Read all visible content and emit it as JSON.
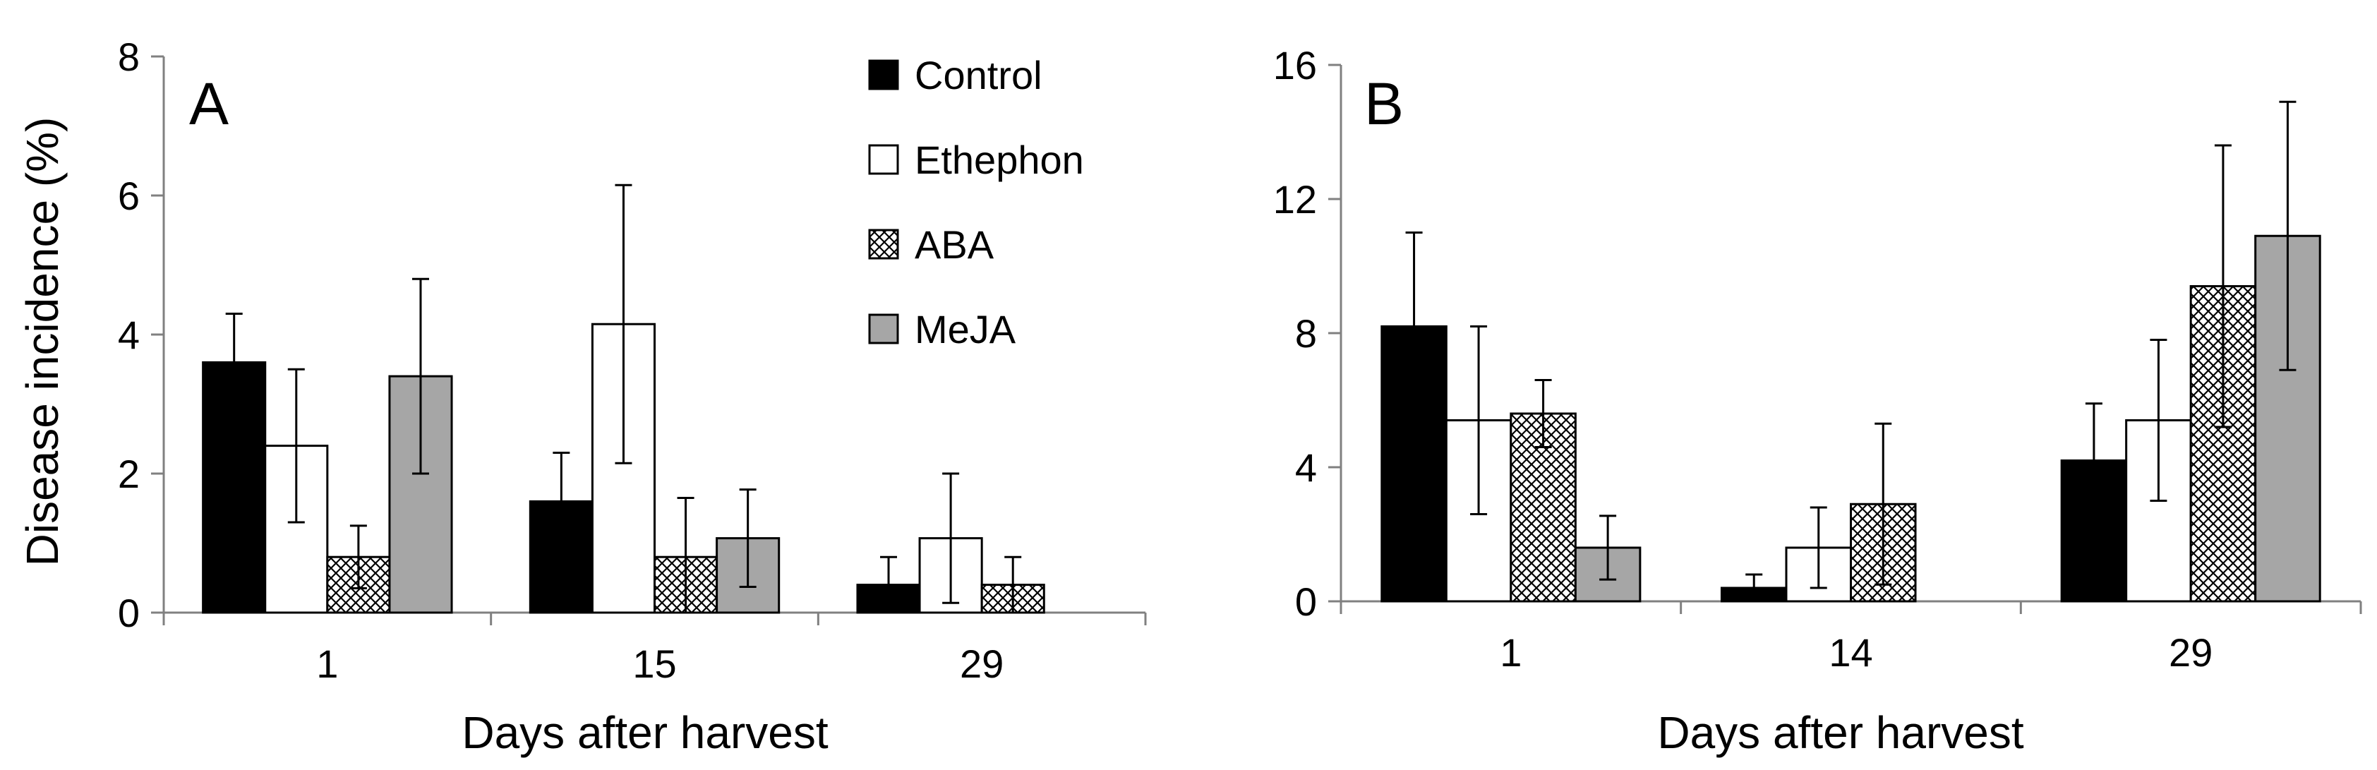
{
  "chart_data": [
    {
      "panel": "A",
      "type": "bar",
      "title": "",
      "xlabel": "Days after harvest",
      "ylabel": "Disease incidence (%)",
      "ylim": [
        0,
        8
      ],
      "yticks": [
        0,
        2,
        4,
        6,
        8
      ],
      "categories": [
        "1",
        "15",
        "29"
      ],
      "series": [
        {
          "name": "Control",
          "values": [
            3.6,
            1.6,
            0.4
          ],
          "errors": [
            0.7,
            0.7,
            0.4
          ]
        },
        {
          "name": "Ethephon",
          "values": [
            2.4,
            4.15,
            1.07
          ],
          "errors": [
            1.1,
            2.0,
            0.93
          ]
        },
        {
          "name": "ABA",
          "values": [
            0.8,
            0.8,
            0.4
          ],
          "errors": [
            0.45,
            0.85,
            0.4
          ]
        },
        {
          "name": "MeJA",
          "values": [
            3.4,
            1.07,
            null
          ],
          "errors": [
            1.4,
            0.7,
            null
          ]
        }
      ],
      "legend": [
        "Control",
        "Ethephon",
        "ABA",
        "MeJA"
      ]
    },
    {
      "panel": "B",
      "type": "bar",
      "title": "",
      "xlabel": "Days after harvest",
      "ylabel": "",
      "ylim": [
        0,
        16
      ],
      "yticks": [
        0,
        4,
        8,
        12,
        16
      ],
      "categories": [
        "1",
        "14",
        "29"
      ],
      "series": [
        {
          "name": "Control",
          "values": [
            8.2,
            0.4,
            4.2
          ],
          "errors": [
            2.8,
            0.4,
            1.7
          ]
        },
        {
          "name": "Ethephon",
          "values": [
            5.4,
            1.6,
            5.4
          ],
          "errors": [
            2.8,
            1.2,
            2.4
          ]
        },
        {
          "name": "ABA",
          "values": [
            5.6,
            2.9,
            9.4
          ],
          "errors": [
            1.0,
            2.4,
            4.2
          ]
        },
        {
          "name": "MeJA",
          "values": [
            1.6,
            null,
            10.9
          ],
          "errors": [
            0.95,
            null,
            4.0
          ]
        }
      ]
    }
  ]
}
